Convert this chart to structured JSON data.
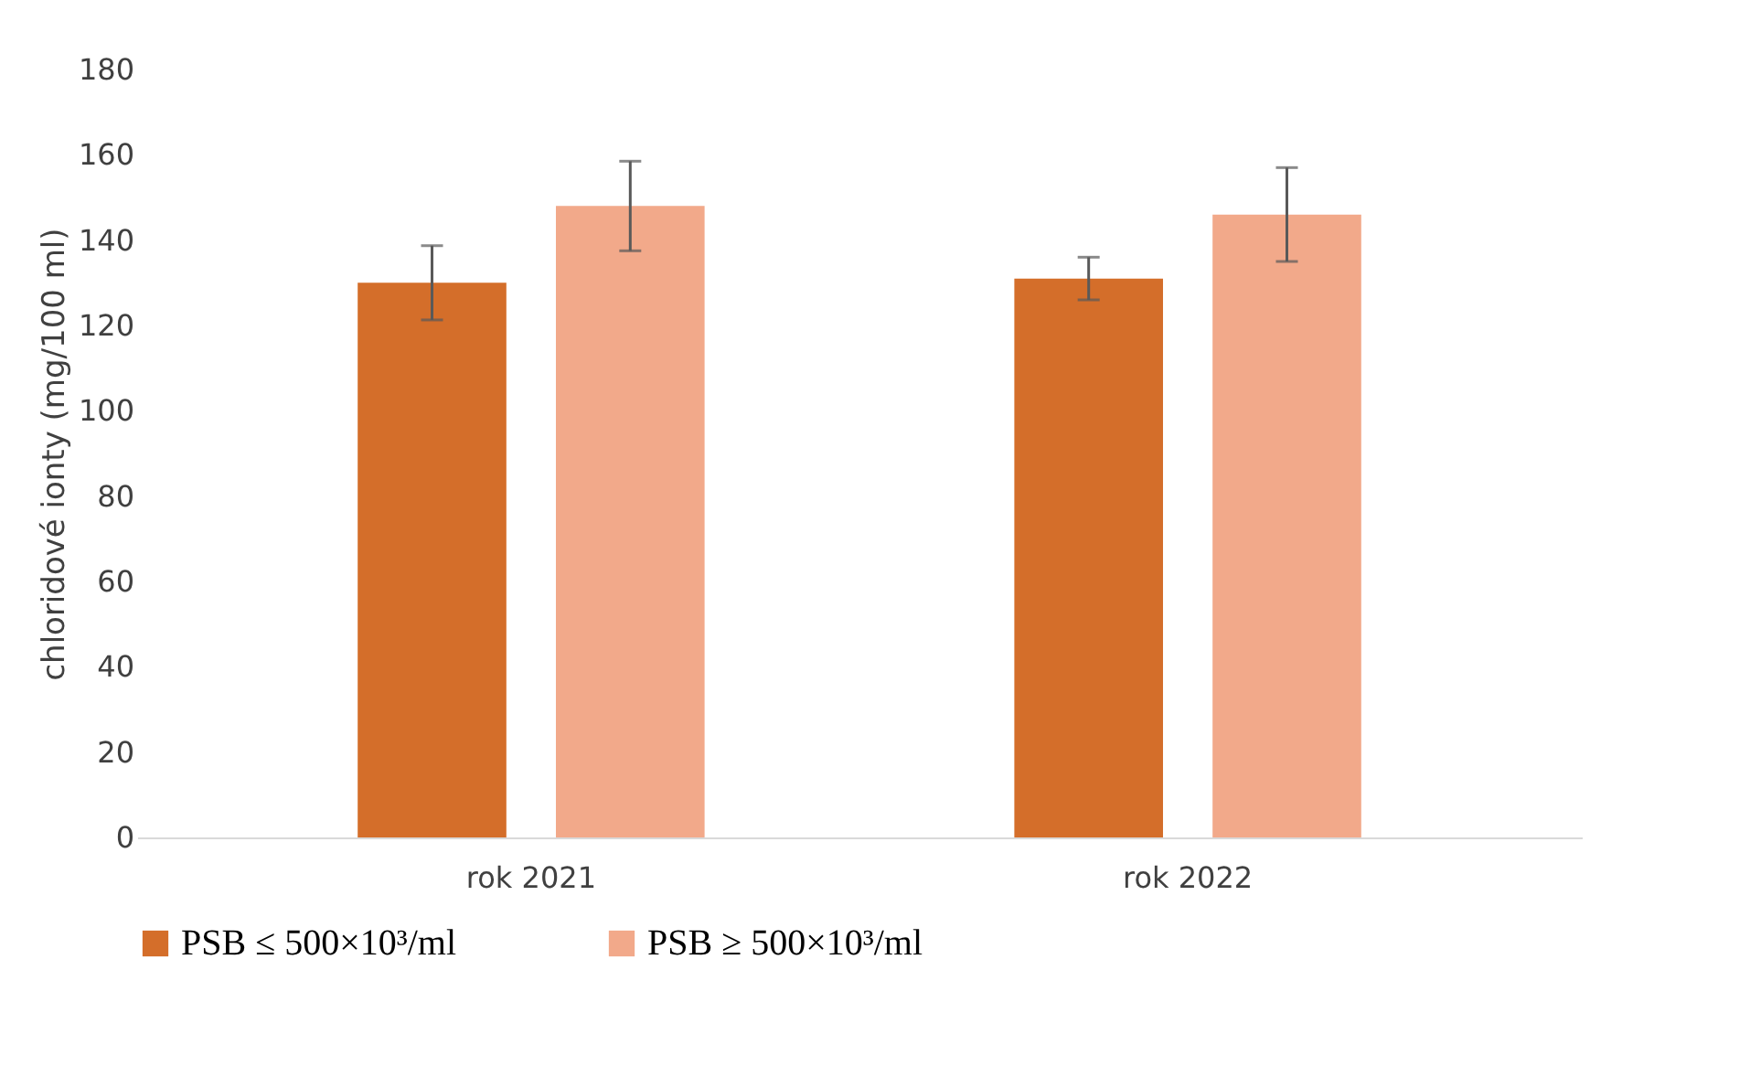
{
  "chart_data": {
    "type": "bar",
    "ylabel": "chloridové ionty (mg/100 ml)",
    "categories": [
      "rok 2021",
      "rok 2022"
    ],
    "series": [
      {
        "name": "PSB ≤ 500×10³/ml",
        "color": "#d46e2a",
        "values": [
          130,
          131
        ],
        "errors": [
          8.7,
          5
        ]
      },
      {
        "name": "PSB ≥ 500×10³/ml",
        "color": "#f2a98a",
        "values": [
          148,
          146
        ],
        "errors": [
          10.5,
          11
        ]
      }
    ],
    "ylim": [
      0,
      180
    ],
    "yticks": [
      0,
      20,
      40,
      60,
      80,
      100,
      120,
      140,
      160,
      180
    ],
    "grid": false,
    "legend": "bottom"
  }
}
